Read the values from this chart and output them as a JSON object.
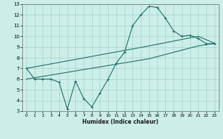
{
  "xlabel": "Humidex (Indice chaleur)",
  "bg_color": "#cceee8",
  "grid_color": "#aad4ce",
  "line_color": "#1a6b65",
  "xlim": [
    -0.5,
    23.5
  ],
  "ylim": [
    3,
    13
  ],
  "xticks": [
    0,
    1,
    2,
    3,
    4,
    5,
    6,
    7,
    8,
    9,
    10,
    11,
    12,
    13,
    14,
    15,
    16,
    17,
    18,
    19,
    20,
    21,
    22,
    23
  ],
  "yticks": [
    3,
    4,
    5,
    6,
    7,
    8,
    9,
    10,
    11,
    12,
    13
  ],
  "line1_x": [
    0,
    1,
    2,
    3,
    4,
    5,
    6,
    7,
    8,
    9,
    10,
    11,
    12,
    13,
    14,
    15,
    16,
    17,
    18,
    19,
    20,
    21,
    22,
    23
  ],
  "line1_y": [
    7.0,
    6.0,
    6.0,
    6.0,
    5.7,
    3.2,
    5.8,
    4.2,
    3.4,
    4.7,
    6.0,
    7.5,
    8.5,
    11.0,
    12.0,
    12.8,
    12.7,
    11.7,
    10.5,
    10.0,
    10.1,
    9.8,
    9.3,
    9.3
  ],
  "line2_x": [
    0,
    15,
    21,
    23
  ],
  "line2_y": [
    7.0,
    9.1,
    10.0,
    9.35
  ],
  "line3_x": [
    0,
    15,
    21,
    23
  ],
  "line3_y": [
    6.0,
    7.9,
    9.1,
    9.35
  ]
}
